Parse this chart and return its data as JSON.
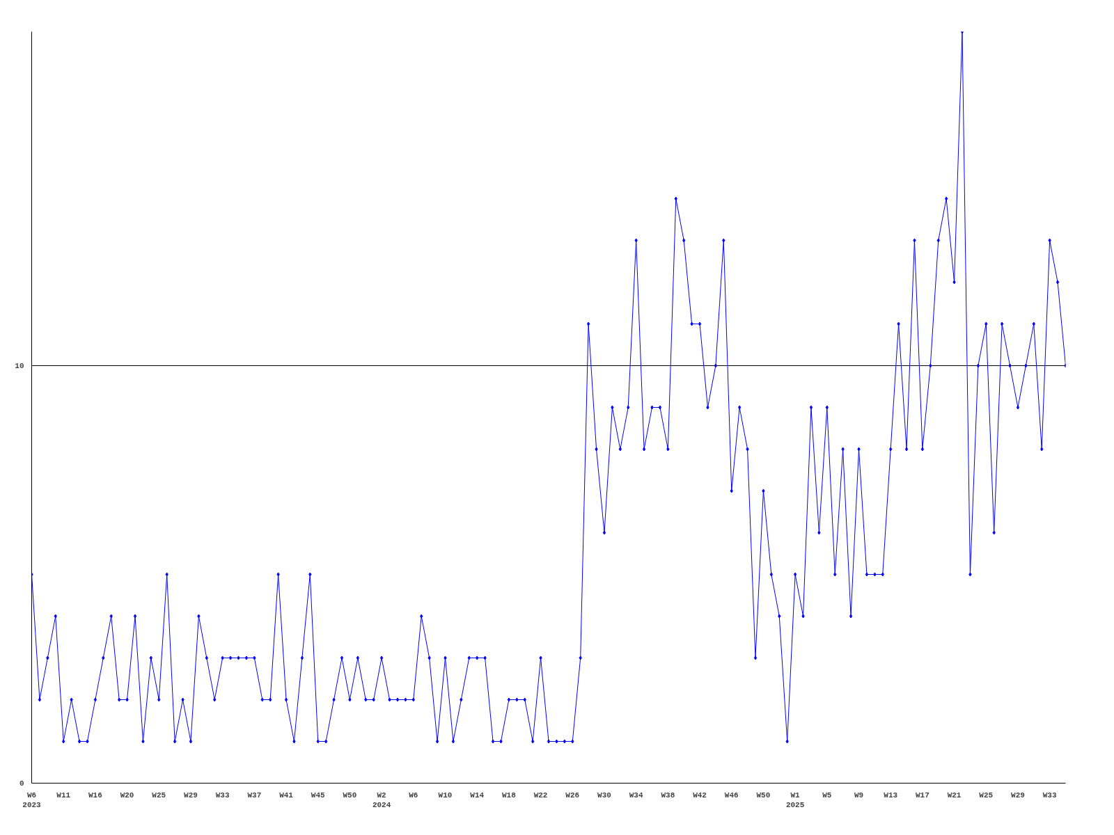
{
  "chart_data": {
    "type": "line",
    "color": "#0000ff",
    "marker": "diamond",
    "line_style": "solid",
    "grid": "y",
    "ylim": [
      0,
      18
    ],
    "yticks": [
      0,
      10
    ],
    "categories": [
      "W6\n2023",
      null,
      null,
      null,
      "W11",
      null,
      null,
      null,
      "W16",
      null,
      null,
      null,
      "W20",
      null,
      null,
      null,
      "W25",
      null,
      null,
      null,
      "W29",
      null,
      null,
      null,
      "W33",
      null,
      null,
      null,
      "W37",
      null,
      null,
      null,
      "W41",
      null,
      null,
      null,
      "W45",
      null,
      null,
      null,
      "W50",
      null,
      null,
      null,
      "W2\n2024",
      null,
      null,
      null,
      "W6",
      null,
      null,
      null,
      "W10",
      null,
      null,
      null,
      "W14",
      null,
      null,
      null,
      "W18",
      null,
      null,
      null,
      "W22",
      null,
      null,
      null,
      "W26",
      null,
      null,
      null,
      "W30",
      null,
      null,
      null,
      "W34",
      null,
      null,
      null,
      "W38",
      null,
      null,
      null,
      "W42",
      null,
      null,
      null,
      "W46",
      null,
      null,
      null,
      "W50",
      null,
      null,
      null,
      "W1\n2025",
      null,
      null,
      null,
      "W5",
      null,
      null,
      null,
      "W9",
      null,
      null,
      null,
      "W13",
      null,
      null,
      null,
      "W17",
      null,
      null,
      null,
      "W21",
      null,
      null,
      null,
      "W25",
      null,
      null,
      null,
      "W29",
      null,
      null,
      null,
      "W33",
      null,
      null
    ],
    "values": [
      5,
      2,
      3,
      4,
      1,
      2,
      1,
      1,
      2,
      3,
      4,
      2,
      2,
      4,
      1,
      3,
      2,
      5,
      1,
      2,
      1,
      4,
      3,
      2,
      3,
      3,
      3,
      3,
      3,
      2,
      2,
      5,
      2,
      1,
      3,
      5,
      1,
      1,
      2,
      3,
      2,
      3,
      2,
      2,
      3,
      2,
      2,
      2,
      2,
      4,
      3,
      1,
      3,
      1,
      2,
      3,
      3,
      3,
      1,
      1,
      2,
      2,
      2,
      1,
      3,
      1,
      1,
      1,
      1,
      3,
      11,
      8,
      6,
      9,
      8,
      9,
      13,
      8,
      9,
      9,
      8,
      14,
      13,
      11,
      11,
      9,
      10,
      13,
      7,
      9,
      8,
      3,
      7,
      5,
      4,
      1,
      5,
      4,
      9,
      6,
      9,
      5,
      8,
      4,
      8,
      5,
      5,
      5,
      8,
      11,
      8,
      13,
      8,
      10,
      13,
      14,
      12,
      18,
      5,
      10,
      11,
      6,
      11,
      10,
      9,
      10,
      11,
      8,
      13,
      12,
      10
    ]
  }
}
